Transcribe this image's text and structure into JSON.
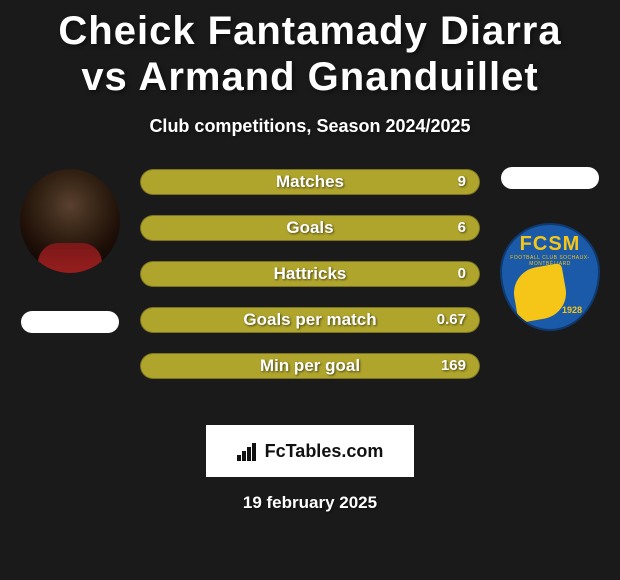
{
  "title": "Cheick Fantamady Diarra vs Armand Gnanduillet",
  "subtitle": "Club competitions, Season 2024/2025",
  "date": "19 february 2025",
  "brand": "FcTables.com",
  "club": {
    "abbr": "FCSM",
    "sub": "FOOTBALL CLUB SOCHAUX-MONTBÉLIARD",
    "year": "1928",
    "shield_bg": "#1a5aa8",
    "shield_accent": "#f5c518"
  },
  "bar_style": {
    "fill_color": "#b0a52c",
    "track_color": "#3a3a3a",
    "text_color": "#ffffff"
  },
  "stats": [
    {
      "label": "Matches",
      "value": "9",
      "fill_pct": 100
    },
    {
      "label": "Goals",
      "value": "6",
      "fill_pct": 100
    },
    {
      "label": "Hattricks",
      "value": "0",
      "fill_pct": 100
    },
    {
      "label": "Goals per match",
      "value": "0.67",
      "fill_pct": 100
    },
    {
      "label": "Min per goal",
      "value": "169",
      "fill_pct": 100
    }
  ]
}
